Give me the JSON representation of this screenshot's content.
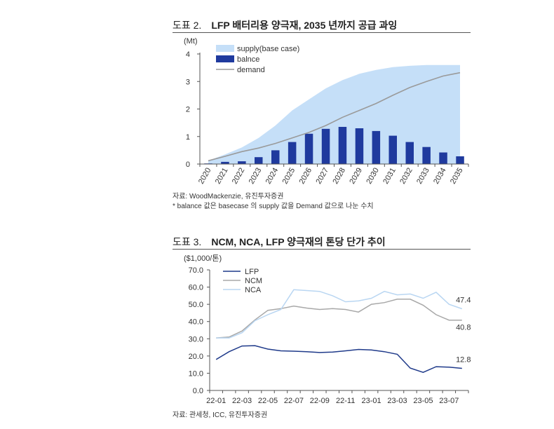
{
  "figure1": {
    "number": "도표 2.",
    "title": "LFP 배터리용 양극재, 2035 년까지 공급 과잉",
    "source": "자료: WoodMackenzie, 유진투자증권",
    "note": "* balance 값은 basecase 의 supply 값을 Demand 값으로 나눈 수치"
  },
  "figure2": {
    "number": "도표 3.",
    "title": "NCM, NCA, LFP 양극재의 톤당 단가 추이",
    "source": "자료: 관세청, ICC, 유진투자증권"
  },
  "colors": {
    "supply": "#c5dff8",
    "balance": "#1f3a9e",
    "demand": "#9a9a9a",
    "lfp": "#1f3a8a",
    "ncm": "#a8a8a8",
    "nca": "#b9d6f2"
  },
  "chart_data": [
    {
      "type": "area+bar+line",
      "unit": "(Mt)",
      "categories": [
        "2020",
        "2021",
        "2022",
        "2023",
        "2024",
        "2025",
        "2026",
        "2027",
        "2028",
        "2029",
        "2030",
        "2031",
        "2032",
        "2033",
        "2034",
        "2035"
      ],
      "ylim": [
        0,
        4
      ],
      "yticks": [
        0,
        1,
        2,
        3,
        4
      ],
      "series": [
        {
          "name": "supply(base case)",
          "kind": "area",
          "values": [
            0.12,
            0.35,
            0.6,
            0.95,
            1.4,
            1.95,
            2.35,
            2.75,
            3.05,
            3.28,
            3.42,
            3.52,
            3.57,
            3.6,
            3.6,
            3.6
          ]
        },
        {
          "name": "balnce",
          "kind": "bar",
          "values": [
            0.02,
            0.08,
            0.1,
            0.25,
            0.5,
            0.8,
            1.1,
            1.28,
            1.35,
            1.3,
            1.2,
            1.03,
            0.8,
            0.62,
            0.42,
            0.28
          ]
        },
        {
          "name": "demand",
          "kind": "line",
          "values": [
            0.12,
            0.28,
            0.45,
            0.58,
            0.75,
            0.95,
            1.15,
            1.4,
            1.7,
            1.95,
            2.2,
            2.5,
            2.78,
            3.0,
            3.2,
            3.32
          ]
        }
      ]
    },
    {
      "type": "line",
      "unit": "($1,000/톤)",
      "x": [
        "22-01",
        "22-02",
        "22-03",
        "22-04",
        "22-05",
        "22-06",
        "22-07",
        "22-08",
        "22-09",
        "22-10",
        "22-11",
        "22-12",
        "23-01",
        "23-02",
        "23-03",
        "23-04",
        "23-05",
        "23-06",
        "23-07",
        "23-08"
      ],
      "xticks": [
        "22-01",
        "22-03",
        "22-05",
        "22-07",
        "22-09",
        "22-11",
        "23-01",
        "23-03",
        "23-05",
        "23-07"
      ],
      "ylim": [
        0,
        70
      ],
      "yticks": [
        "0.0",
        "10.0",
        "20.0",
        "30.0",
        "40.0",
        "50.0",
        "60.0",
        "70.0"
      ],
      "series": [
        {
          "name": "LFP",
          "values": [
            18.0,
            22.5,
            25.8,
            26.0,
            24.0,
            23.0,
            22.8,
            22.5,
            22.0,
            22.3,
            23.0,
            23.8,
            23.5,
            22.5,
            21.0,
            13.0,
            10.5,
            13.8,
            13.5,
            12.8
          ],
          "end_label": "12.8"
        },
        {
          "name": "NCM",
          "values": [
            30.5,
            31.0,
            34.5,
            41.0,
            46.5,
            47.5,
            49.0,
            47.8,
            47.0,
            47.5,
            47.0,
            45.5,
            50.0,
            51.0,
            53.0,
            53.0,
            49.5,
            44.0,
            40.8,
            40.8
          ],
          "end_label": "40.8"
        },
        {
          "name": "NCA",
          "values": [
            30.5,
            30.5,
            33.5,
            40.5,
            44.0,
            47.0,
            58.5,
            58.0,
            57.5,
            55.0,
            51.5,
            52.0,
            53.5,
            57.5,
            55.5,
            56.0,
            53.5,
            57.0,
            50.0,
            47.4
          ],
          "end_label": "47.4"
        }
      ]
    }
  ]
}
